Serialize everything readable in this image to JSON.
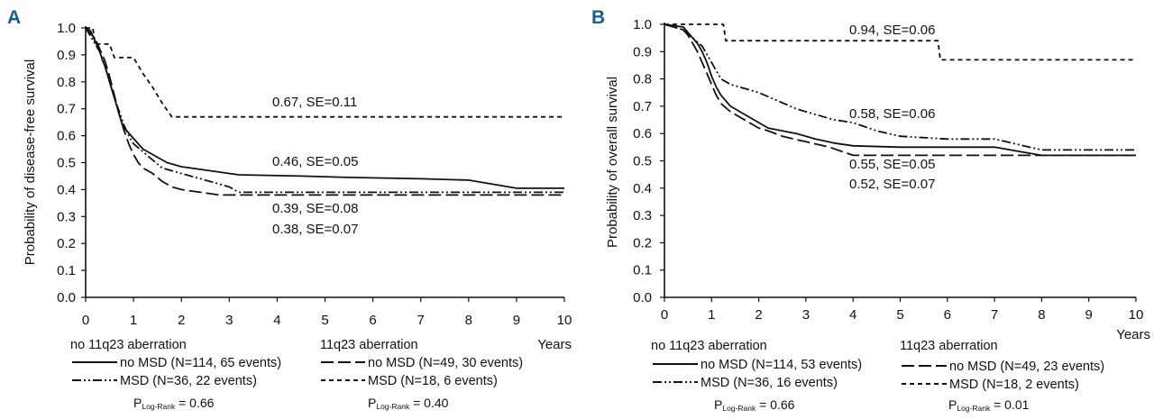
{
  "chart_data": [
    {
      "panel": "A",
      "type": "line",
      "ylabel": "Probability of disease-free survival",
      "xlabel": "Years",
      "xlim": [
        0,
        10
      ],
      "ylim": [
        0,
        1
      ],
      "xticks": [
        "0",
        "1",
        "2",
        "3",
        "4",
        "5",
        "6",
        "7",
        "8",
        "9",
        "10"
      ],
      "yticks": [
        "0.0",
        "0.1",
        "0.2",
        "0.3",
        "0.4",
        "0.5",
        "0.6",
        "0.7",
        "0.8",
        "0.9",
        "1.0"
      ],
      "series": [
        {
          "name": "no MSD (N=114, 65 events)",
          "group": "no 11q23 aberration",
          "style": "solid",
          "x": [
            0,
            0.1,
            0.15,
            0.2,
            0.25,
            0.3,
            0.35,
            0.4,
            0.45,
            0.5,
            0.55,
            0.6,
            0.65,
            0.7,
            0.75,
            0.8,
            0.9,
            1.0,
            1.1,
            1.2,
            1.3,
            1.4,
            1.5,
            1.6,
            1.7,
            1.8,
            1.9,
            2.0,
            2.2,
            2.4,
            2.6,
            2.8,
            3.2,
            4.5,
            5.5,
            7.0,
            8.0,
            9.0,
            10.0
          ],
          "y": [
            1.0,
            0.99,
            0.97,
            0.95,
            0.93,
            0.91,
            0.88,
            0.86,
            0.83,
            0.8,
            0.77,
            0.74,
            0.71,
            0.68,
            0.65,
            0.63,
            0.61,
            0.59,
            0.57,
            0.55,
            0.54,
            0.53,
            0.52,
            0.51,
            0.5,
            0.495,
            0.49,
            0.485,
            0.48,
            0.475,
            0.47,
            0.465,
            0.455,
            0.45,
            0.445,
            0.44,
            0.435,
            0.405,
            0.405
          ]
        },
        {
          "name": "MSD (N=36, 22 events)",
          "group": "no 11q23 aberration",
          "style": "dashdotdot",
          "x": [
            0,
            0.1,
            0.2,
            0.3,
            0.4,
            0.5,
            0.6,
            0.7,
            0.8,
            0.9,
            1.0,
            1.2,
            1.4,
            1.6,
            1.8,
            2.0,
            2.4,
            2.8,
            3.0,
            3.2,
            10.0
          ],
          "y": [
            1.0,
            0.97,
            0.94,
            0.91,
            0.86,
            0.8,
            0.74,
            0.69,
            0.64,
            0.6,
            0.57,
            0.54,
            0.51,
            0.48,
            0.47,
            0.46,
            0.44,
            0.42,
            0.41,
            0.39,
            0.39
          ]
        },
        {
          "name": "no MSD (N=49, 30 events)",
          "group": "11q23 aberration",
          "style": "longdash",
          "x": [
            0,
            0.1,
            0.2,
            0.3,
            0.4,
            0.5,
            0.6,
            0.7,
            0.8,
            0.9,
            1.0,
            1.1,
            1.2,
            1.4,
            1.6,
            1.8,
            2.0,
            2.4,
            2.8,
            10.0
          ],
          "y": [
            1.0,
            0.98,
            0.96,
            0.92,
            0.88,
            0.82,
            0.75,
            0.68,
            0.62,
            0.57,
            0.53,
            0.5,
            0.48,
            0.46,
            0.43,
            0.41,
            0.4,
            0.39,
            0.38,
            0.38
          ]
        },
        {
          "name": "MSD (N=18, 6 events)",
          "group": "11q23 aberration",
          "style": "shortdash",
          "x": [
            0,
            0.15,
            0.2,
            0.5,
            0.6,
            1.0,
            1.2,
            1.4,
            1.6,
            1.8,
            10.0
          ],
          "y": [
            1.0,
            1.0,
            0.94,
            0.94,
            0.89,
            0.89,
            0.83,
            0.78,
            0.72,
            0.67,
            0.67
          ]
        }
      ],
      "annotations": [
        "0.67, SE=0.11",
        "0.46, SE=0.05",
        "0.39, SE=0.08",
        "0.38, SE=0.07"
      ],
      "legend": {
        "group1": "no 11q23 aberration",
        "group2": "11q23 aberration",
        "p1_main": "P",
        "p1_sub": "Log-Rank",
        "p1_val": " = 0.66",
        "p2_main": "P",
        "p2_sub": "Log-Rank",
        "p2_val": " = 0.40"
      }
    },
    {
      "panel": "B",
      "type": "line",
      "ylabel": "Probability of overall survival",
      "xlabel": "Years",
      "xlim": [
        0,
        10
      ],
      "ylim": [
        0,
        1
      ],
      "xticks": [
        "0",
        "1",
        "2",
        "3",
        "4",
        "5",
        "6",
        "7",
        "8",
        "9",
        "10"
      ],
      "yticks": [
        "0.0",
        "0.1",
        "0.2",
        "0.3",
        "0.4",
        "0.5",
        "0.6",
        "0.7",
        "0.8",
        "0.9",
        "1.0"
      ],
      "series": [
        {
          "name": "no MSD (N=114, 53 events)",
          "group": "no 11q23 aberration",
          "style": "solid",
          "x": [
            0,
            0.4,
            0.5,
            0.6,
            0.7,
            0.8,
            0.9,
            1.0,
            1.1,
            1.2,
            1.3,
            1.4,
            1.5,
            1.6,
            1.7,
            1.8,
            2.0,
            2.2,
            2.5,
            2.8,
            3.2,
            3.6,
            4.0,
            5.0,
            6.0,
            7.0,
            8.0,
            10.0
          ],
          "y": [
            1.0,
            0.99,
            0.97,
            0.95,
            0.93,
            0.9,
            0.86,
            0.81,
            0.77,
            0.74,
            0.72,
            0.7,
            0.69,
            0.68,
            0.67,
            0.66,
            0.64,
            0.62,
            0.61,
            0.6,
            0.58,
            0.565,
            0.555,
            0.55,
            0.55,
            0.55,
            0.52,
            0.52
          ]
        },
        {
          "name": "MSD (N=36, 16 events)",
          "group": "no 11q23 aberration",
          "style": "dashdotdot",
          "x": [
            0,
            0.4,
            0.6,
            0.8,
            0.9,
            1.0,
            1.1,
            1.2,
            1.4,
            1.6,
            1.8,
            2.0,
            2.4,
            2.8,
            3.2,
            3.6,
            4.0,
            4.5,
            5.0,
            6.0,
            7.0,
            8.0,
            10.0
          ],
          "y": [
            1.0,
            0.98,
            0.95,
            0.92,
            0.89,
            0.86,
            0.83,
            0.8,
            0.78,
            0.77,
            0.76,
            0.75,
            0.72,
            0.69,
            0.67,
            0.65,
            0.64,
            0.61,
            0.59,
            0.58,
            0.58,
            0.54,
            0.54
          ]
        },
        {
          "name": "no MSD (N=49, 23 events)",
          "group": "11q23 aberration",
          "style": "longdash",
          "x": [
            0,
            0.4,
            0.5,
            0.6,
            0.7,
            0.8,
            0.9,
            1.0,
            1.1,
            1.2,
            1.4,
            1.6,
            1.8,
            2.0,
            2.2,
            2.5,
            3.0,
            3.5,
            4.0,
            10.0
          ],
          "y": [
            1.0,
            0.98,
            0.96,
            0.93,
            0.9,
            0.86,
            0.82,
            0.78,
            0.74,
            0.71,
            0.68,
            0.66,
            0.64,
            0.62,
            0.61,
            0.59,
            0.57,
            0.55,
            0.52,
            0.52
          ]
        },
        {
          "name": "MSD (N=18, 2 events)",
          "group": "11q23 aberration",
          "style": "shortdash",
          "x": [
            0,
            1.25,
            1.3,
            5.8,
            5.85,
            10.0
          ],
          "y": [
            1.0,
            1.0,
            0.94,
            0.94,
            0.87,
            0.87
          ]
        }
      ],
      "annotations": [
        "0.94, SE=0.06",
        "0.58, SE=0.06",
        "0.55, SE=0.05",
        "0.52, SE=0.07"
      ],
      "legend": {
        "group1": "no 11q23 aberration",
        "group2": "11q23 aberration",
        "p1_main": "P",
        "p1_sub": "Log-Rank",
        "p1_val": " = 0.66",
        "p2_main": "P",
        "p2_sub": "Log-Rank",
        "p2_val": " = 0.01"
      }
    }
  ]
}
